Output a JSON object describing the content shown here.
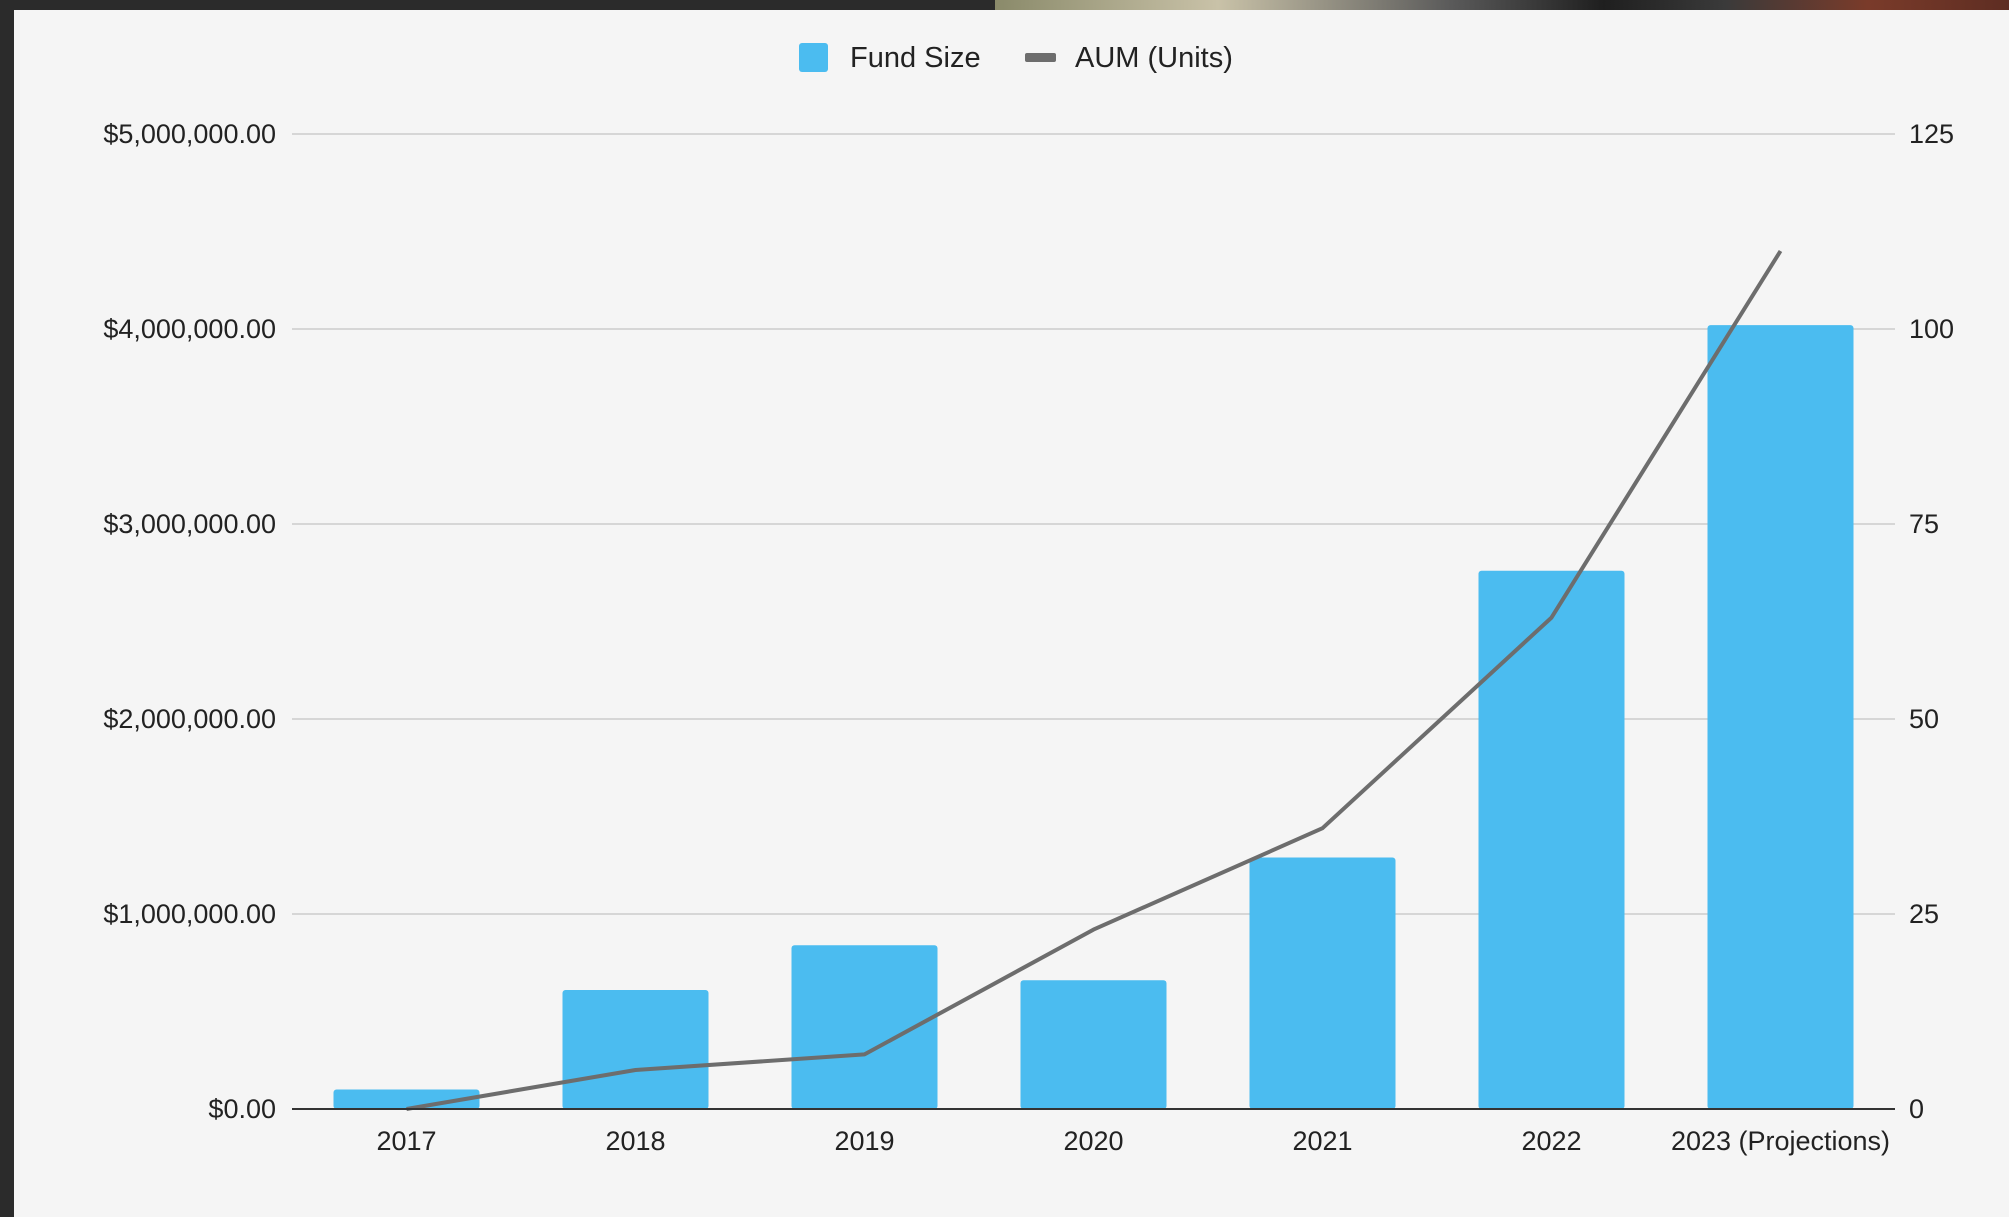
{
  "chart_data": {
    "type": "bar",
    "categories": [
      "2017",
      "2018",
      "2019",
      "2020",
      "2021",
      "2022",
      "2023 (Projections)"
    ],
    "series": [
      {
        "name": "Fund Size",
        "kind": "bar",
        "axis": "left",
        "color": "#4bbcf0",
        "values": [
          100000,
          610000,
          840000,
          660000,
          1290000,
          2760000,
          4020000
        ]
      },
      {
        "name": "AUM (Units)",
        "kind": "line",
        "axis": "right",
        "color": "#6d6d6d",
        "values": [
          0,
          5,
          7,
          23,
          36,
          63,
          110
        ]
      }
    ],
    "y_left": {
      "ylim": [
        0,
        5000000
      ],
      "ticks": [
        0,
        1000000,
        2000000,
        3000000,
        4000000,
        5000000
      ],
      "tick_labels": [
        "$0.00",
        "$1,000,000.00",
        "$2,000,000.00",
        "$3,000,000.00",
        "$4,000,000.00",
        "$5,000,000.00"
      ]
    },
    "y_right": {
      "ylim": [
        0,
        125
      ],
      "ticks": [
        0,
        25,
        50,
        75,
        100,
        125
      ],
      "tick_labels": [
        "0",
        "25",
        "50",
        "75",
        "100",
        "125"
      ]
    },
    "legend_position": "top-center",
    "grid": true,
    "colors": {
      "plot_background": "#f5f5f5",
      "gridline": "#cccccc",
      "axis_line": "#333333"
    }
  }
}
